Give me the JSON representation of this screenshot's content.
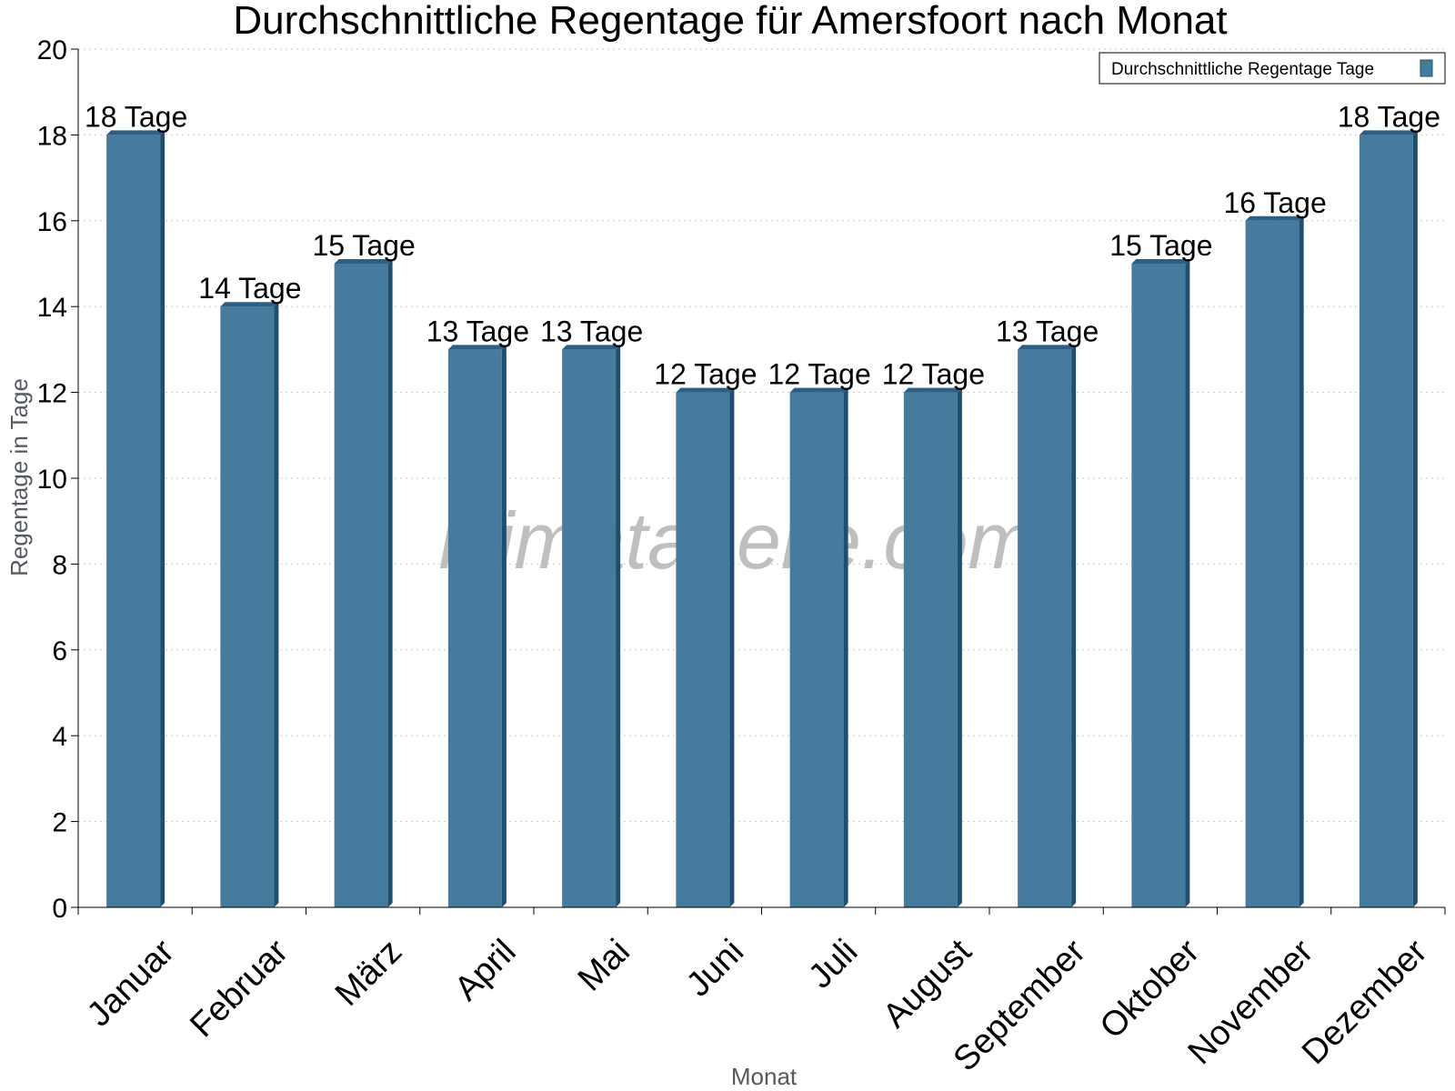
{
  "chart_data": {
    "type": "bar",
    "title": "Durchschnittliche Regentage für Amersfoort nach Monat",
    "xlabel": "Monat",
    "ylabel": "Regentage in Tage",
    "ylim": [
      0,
      20
    ],
    "yticks": [
      0,
      2,
      4,
      6,
      8,
      10,
      12,
      14,
      16,
      18,
      20
    ],
    "grid": true,
    "legend_position": "top-right",
    "categories": [
      "Januar",
      "Februar",
      "März",
      "April",
      "Mai",
      "Juni",
      "Juli",
      "August",
      "September",
      "Oktober",
      "November",
      "Dezember"
    ],
    "series": [
      {
        "name": "Durchschnittliche Regentage Tage",
        "values": [
          18,
          14,
          15,
          13,
          13,
          12,
          12,
          12,
          13,
          15,
          16,
          18
        ],
        "labels": [
          "18 Tage",
          "14 Tage",
          "15 Tage",
          "13 Tage",
          "13 Tage",
          "12 Tage",
          "12 Tage",
          "12 Tage",
          "13 Tage",
          "15 Tage",
          "16 Tage",
          "18 Tage"
        ],
        "color": "#457b9d",
        "side_color": "#1f4f70",
        "top_color": "#2c5f85"
      }
    ],
    "watermark": "klimatabelle.com"
  }
}
